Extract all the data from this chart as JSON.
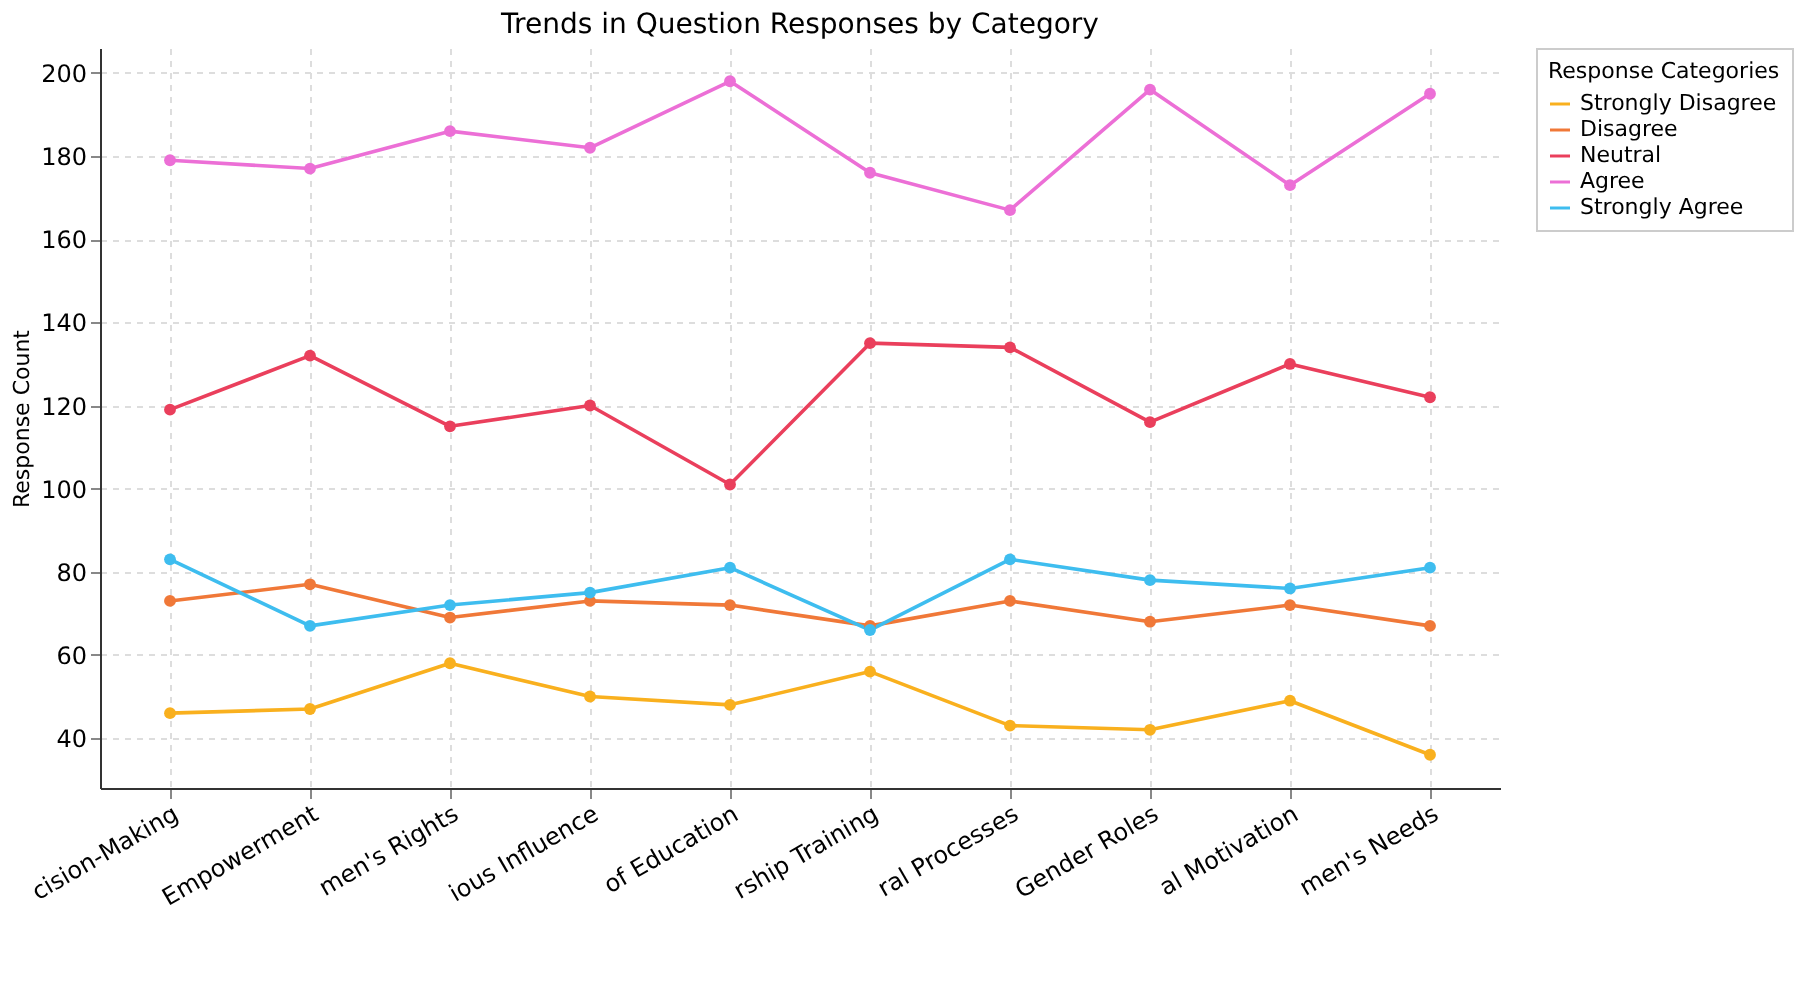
{
  "chart_data": {
    "type": "line",
    "title": "Trends in Question Responses by Category",
    "ylabel": "Response Count",
    "legend_title": "Response Categories",
    "categories": [
      "cision-Making",
      "Empowerment",
      "men's Rights",
      "ious Influence",
      "of Education",
      "rship Training",
      "ral Processes",
      "Gender Roles",
      "al Motivation",
      "men's Needs"
    ],
    "series": [
      {
        "name": "Strongly Disagree",
        "color": "#f9b01e",
        "values": [
          46,
          47,
          58,
          50,
          48,
          56,
          43,
          42,
          49,
          36
        ]
      },
      {
        "name": "Disagree",
        "color": "#f07838",
        "values": [
          73,
          77,
          69,
          73,
          72,
          67,
          73,
          68,
          72,
          67
        ]
      },
      {
        "name": "Neutral",
        "color": "#ea3f5c",
        "values": [
          119,
          132,
          115,
          120,
          101,
          135,
          134,
          116,
          130,
          122
        ]
      },
      {
        "name": "Agree",
        "color": "#ec6fd6",
        "values": [
          179,
          177,
          186,
          182,
          198,
          176,
          167,
          196,
          173,
          195
        ]
      },
      {
        "name": "Strongly Agree",
        "color": "#3ebdef",
        "values": [
          83,
          67,
          72,
          75,
          81,
          66,
          83,
          78,
          76,
          81
        ]
      }
    ],
    "ylim": [
      28,
      206
    ],
    "yticks": [
      40,
      60,
      80,
      100,
      120,
      140,
      160,
      180,
      200
    ],
    "grid": true,
    "legend": "top right",
    "marker": "circle",
    "line_style": "solid"
  }
}
